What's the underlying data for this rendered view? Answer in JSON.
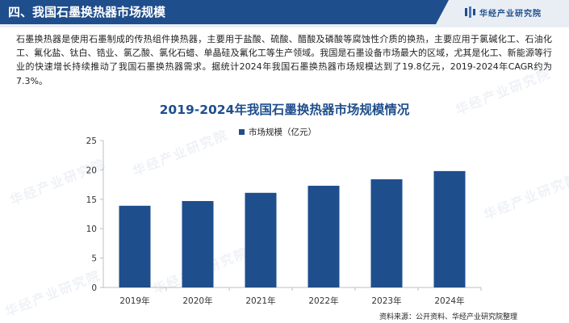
{
  "header": {
    "title": "四、我国石墨换热器市场规模",
    "brand": "华经产业研究院"
  },
  "intro": "石墨换热器是使用石墨制成的传热组件换热器，主要用于盐酸、硫酸、醋酸及磷酸等腐蚀性介质的换热，主要应用于氯碱化工、石油化工、氟化盐、钛白、锆业、氯乙酸、氯化石蜡、单晶硅及氟化工等生产领域。我国是石墨设备市场最大的区域，尤其是化工、新能源等行业的快速增长持续推动了我国石墨换热器需求。据统计2024年我国石墨换热器市场规模达到了19.8亿元，2019-2024年CAGR约为7.3%。",
  "watermark": "华经产业研究院",
  "source": "资料来源：公开资料、华经产业研究院整理",
  "colors": {
    "brand": "#1f4e8c",
    "bar": "#1f4e8c",
    "axis": "#bfbfbf"
  },
  "chart_data": {
    "type": "bar",
    "title": "2019-2024年我国石墨换热器市场规模情况",
    "categories": [
      "2019年",
      "2020年",
      "2021年",
      "2022年",
      "2023年",
      "2024年"
    ],
    "series": [
      {
        "name": "市场规模（亿元）",
        "values": [
          13.9,
          14.7,
          16.1,
          17.3,
          18.4,
          19.8
        ]
      }
    ],
    "yticks": [
      "0",
      "5",
      "10",
      "15",
      "20",
      "25"
    ],
    "ylim": [
      0,
      25
    ],
    "legend_position": "top",
    "grid": false
  }
}
